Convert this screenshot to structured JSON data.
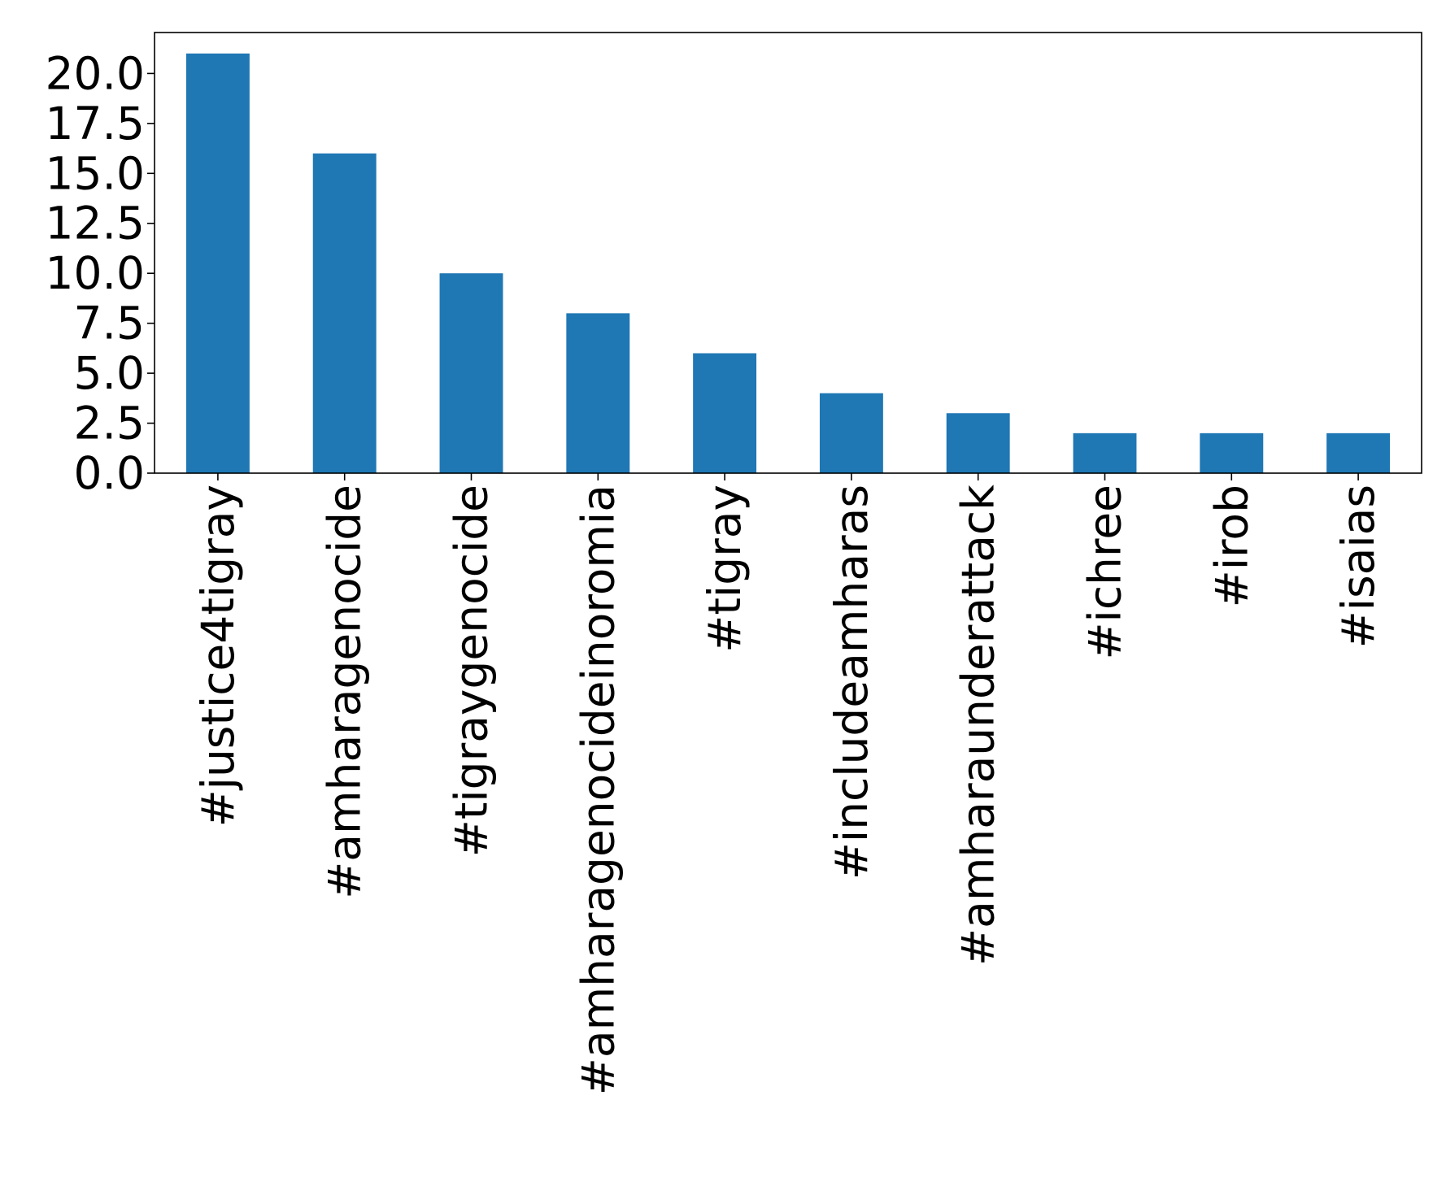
{
  "chart_data": {
    "type": "bar",
    "title": "",
    "xlabel": "",
    "ylabel": "",
    "categories": [
      "#justice4tigray",
      "#amharagenocide",
      "#tigraygenocide",
      "#amharagenocideinoromia",
      "#tigray",
      "#includeamharas",
      "#amharaunderattack",
      "#ichree",
      "#irob",
      "#isaias"
    ],
    "values": [
      21,
      16,
      10,
      8,
      6,
      4,
      3,
      2,
      2,
      2
    ],
    "ylim": [
      0,
      22.05
    ],
    "yticks": [
      0.0,
      2.5,
      5.0,
      7.5,
      10.0,
      12.5,
      15.0,
      17.5,
      20.0
    ],
    "ytick_labels": [
      "0.0",
      "2.5",
      "5.0",
      "7.5",
      "10.0",
      "12.5",
      "15.0",
      "17.5",
      "20.0"
    ],
    "bar_color": "#1f77b4",
    "grid": false,
    "legend": "none"
  }
}
